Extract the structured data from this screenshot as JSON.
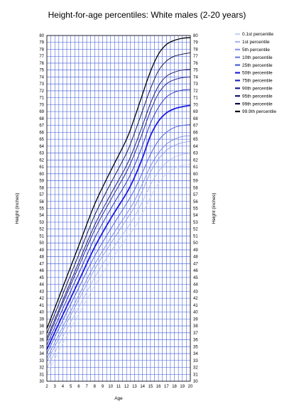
{
  "chart_data": {
    "type": "line",
    "title": "Height-for-age percentiles: White males (2-20 years)",
    "xlabel": "Age",
    "ylabel_left": "Height (inches)",
    "ylabel_right": "Height (inches)",
    "xlim": [
      2,
      20
    ],
    "ylim": [
      30,
      80
    ],
    "grid": true,
    "legend_position": "right",
    "x": [
      2,
      4,
      6,
      8,
      10,
      12,
      13,
      14,
      15,
      16,
      17,
      18,
      19,
      20
    ],
    "series": [
      {
        "name": "0.1st percentile",
        "color": "#c8d0f2",
        "width": 0.8,
        "values": [
          31.0,
          35.5,
          39.7,
          43.8,
          47.4,
          50.7,
          52.2,
          54.3,
          56.6,
          58.6,
          60.0,
          60.8,
          61.2,
          61.4
        ]
      },
      {
        "name": "1st percentile",
        "color": "#aab6ee",
        "width": 0.8,
        "values": [
          31.9,
          36.4,
          40.7,
          45.0,
          48.7,
          52.0,
          53.8,
          56.0,
          58.4,
          60.3,
          61.6,
          62.4,
          62.8,
          63.0
        ]
      },
      {
        "name": "5th percentile",
        "color": "#8797e6",
        "width": 0.8,
        "values": [
          32.8,
          37.3,
          41.8,
          46.2,
          49.9,
          53.4,
          55.2,
          57.6,
          60.2,
          62.1,
          63.4,
          64.1,
          64.5,
          64.7
        ]
      },
      {
        "name": "10th percentile",
        "color": "#6f7fe0",
        "width": 0.8,
        "values": [
          33.3,
          37.9,
          42.4,
          46.9,
          50.7,
          54.2,
          56.1,
          58.6,
          61.1,
          63.0,
          64.3,
          65.0,
          65.4,
          65.5
        ]
      },
      {
        "name": "25th percentile",
        "color": "#4a5cdb",
        "width": 0.9,
        "values": [
          34.0,
          38.8,
          43.5,
          48.1,
          52.0,
          55.7,
          57.7,
          60.2,
          62.8,
          64.8,
          66.0,
          66.7,
          67.0,
          67.1
        ]
      },
      {
        "name": "50th percentile",
        "color": "#1c1ce0",
        "width": 1.8,
        "values": [
          34.6,
          39.6,
          44.5,
          49.4,
          53.5,
          57.2,
          59.5,
          62.3,
          65.5,
          67.6,
          68.8,
          69.4,
          69.7,
          69.9
        ]
      },
      {
        "name": "75th percentile",
        "color": "#2323b4",
        "width": 0.9,
        "values": [
          35.2,
          40.5,
          45.6,
          50.7,
          54.9,
          58.8,
          61.2,
          64.1,
          67.3,
          69.6,
          71.1,
          71.8,
          72.1,
          72.2
        ]
      },
      {
        "name": "90th percentile",
        "color": "#1a1a8a",
        "width": 0.9,
        "values": [
          35.8,
          41.3,
          46.6,
          51.9,
          56.2,
          60.3,
          62.9,
          65.9,
          69.1,
          71.6,
          73.0,
          73.6,
          73.9,
          74.0
        ]
      },
      {
        "name": "95th percentile",
        "color": "#121263",
        "width": 0.9,
        "values": [
          36.2,
          41.7,
          47.2,
          52.6,
          57.0,
          61.2,
          63.9,
          67.0,
          70.2,
          72.7,
          74.1,
          74.7,
          75.0,
          75.1
        ]
      },
      {
        "name": "99th percentile",
        "color": "#0a0a3c",
        "width": 0.9,
        "values": [
          36.9,
          42.6,
          48.3,
          54.0,
          58.6,
          63.0,
          65.9,
          69.1,
          72.3,
          74.9,
          76.3,
          77.0,
          77.3,
          77.5
        ]
      },
      {
        "name": "99.9th percentile",
        "color": "#000000",
        "width": 1.3,
        "values": [
          37.6,
          43.6,
          49.6,
          55.6,
          60.4,
          65.0,
          68.1,
          71.5,
          74.8,
          77.3,
          78.7,
          79.3,
          79.6,
          79.7
        ]
      }
    ]
  }
}
